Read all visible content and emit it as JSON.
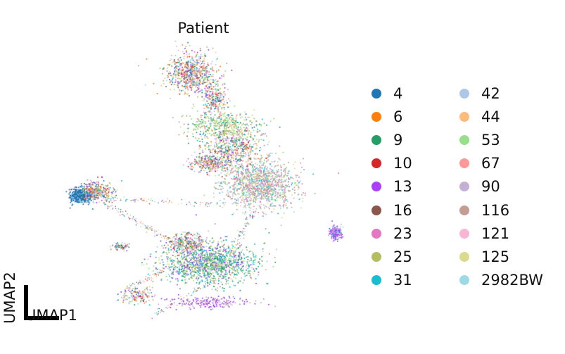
{
  "chart_data": {
    "type": "scatter",
    "title": "Patient",
    "xlabel": "UMAP1",
    "ylabel": "UMAP2",
    "grid": false,
    "axes_visible": false,
    "legend_position": "right",
    "series": [
      {
        "name": "4",
        "color": "#1f77b4"
      },
      {
        "name": "6",
        "color": "#ff7f0e"
      },
      {
        "name": "9",
        "color": "#279e68"
      },
      {
        "name": "10",
        "color": "#d62728"
      },
      {
        "name": "13",
        "color": "#aa40fc"
      },
      {
        "name": "16",
        "color": "#8c564b"
      },
      {
        "name": "23",
        "color": "#e377c2"
      },
      {
        "name": "25",
        "color": "#b5bd61"
      },
      {
        "name": "31",
        "color": "#17becf"
      },
      {
        "name": "42",
        "color": "#aec7e8"
      },
      {
        "name": "44",
        "color": "#ffbb78"
      },
      {
        "name": "53",
        "color": "#98df8a"
      },
      {
        "name": "67",
        "color": "#ff9896"
      },
      {
        "name": "90",
        "color": "#c5b0d5"
      },
      {
        "name": "116",
        "color": "#c49c94"
      },
      {
        "name": "121",
        "color": "#f7b6d2"
      },
      {
        "name": "125",
        "color": "#dbdb8d"
      },
      {
        "name": "2982BW",
        "color": "#9edae5"
      }
    ]
  }
}
